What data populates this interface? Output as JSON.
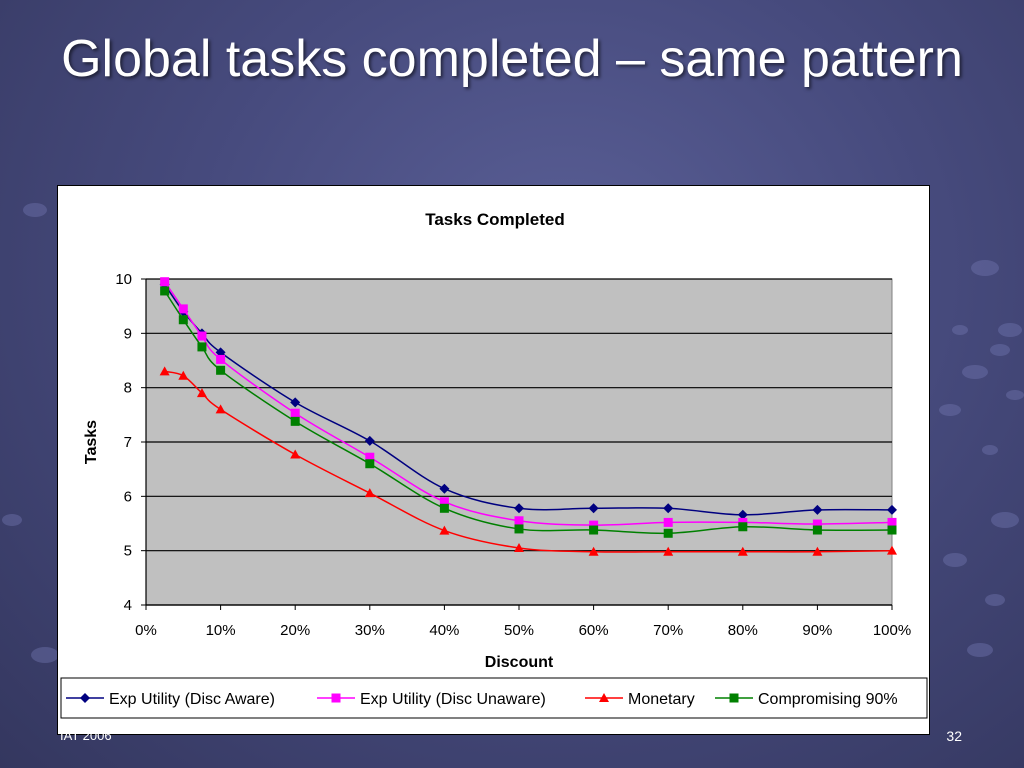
{
  "slide": {
    "title": "Global tasks completed – same pattern",
    "footer_left": "IAT 2006",
    "slide_number": "32"
  },
  "colors": {
    "background": "#474b7e",
    "plot_area": "#c0c0c0",
    "exp_utility_aware": "#000080",
    "exp_utility_unaware": "#ff00ff",
    "monetary": "#ff0000",
    "compromising": "#008000"
  },
  "chart_data": {
    "type": "line",
    "title": "Tasks Completed",
    "xlabel": "Discount",
    "ylabel": "Tasks",
    "xlim": [
      0,
      100
    ],
    "ylim": [
      4,
      10
    ],
    "x_ticks": [
      "0%",
      "10%",
      "20%",
      "30%",
      "40%",
      "50%",
      "60%",
      "70%",
      "80%",
      "90%",
      "100%"
    ],
    "y_ticks": [
      "4",
      "5",
      "6",
      "7",
      "8",
      "9",
      "10"
    ],
    "grid": "horizontal",
    "legend_position": "bottom",
    "x": [
      2.5,
      5,
      7.5,
      10,
      20,
      30,
      40,
      50,
      60,
      70,
      80,
      90,
      100
    ],
    "series": [
      {
        "name": "Exp Utility (Disc Aware)",
        "color": "#000080",
        "marker": "diamond",
        "values": [
          9.9,
          9.4,
          9.0,
          8.65,
          7.73,
          7.02,
          6.14,
          5.78,
          5.78,
          5.78,
          5.66,
          5.75,
          5.75
        ]
      },
      {
        "name": "Exp Utility (Disc Unaware)",
        "color": "#ff00ff",
        "marker": "square",
        "values": [
          9.95,
          9.45,
          8.95,
          8.52,
          7.53,
          6.72,
          5.9,
          5.55,
          5.47,
          5.52,
          5.52,
          5.49,
          5.52
        ]
      },
      {
        "name": "Monetary",
        "color": "#ff0000",
        "marker": "triangle",
        "values": [
          8.3,
          8.22,
          7.9,
          7.6,
          6.77,
          6.06,
          5.37,
          5.05,
          4.98,
          4.98,
          4.98,
          4.98,
          5.0
        ]
      },
      {
        "name": "Compromising 90%",
        "color": "#008000",
        "marker": "square",
        "values": [
          9.78,
          9.25,
          8.75,
          8.32,
          7.38,
          6.6,
          5.78,
          5.4,
          5.38,
          5.32,
          5.44,
          5.38,
          5.38
        ]
      }
    ]
  }
}
